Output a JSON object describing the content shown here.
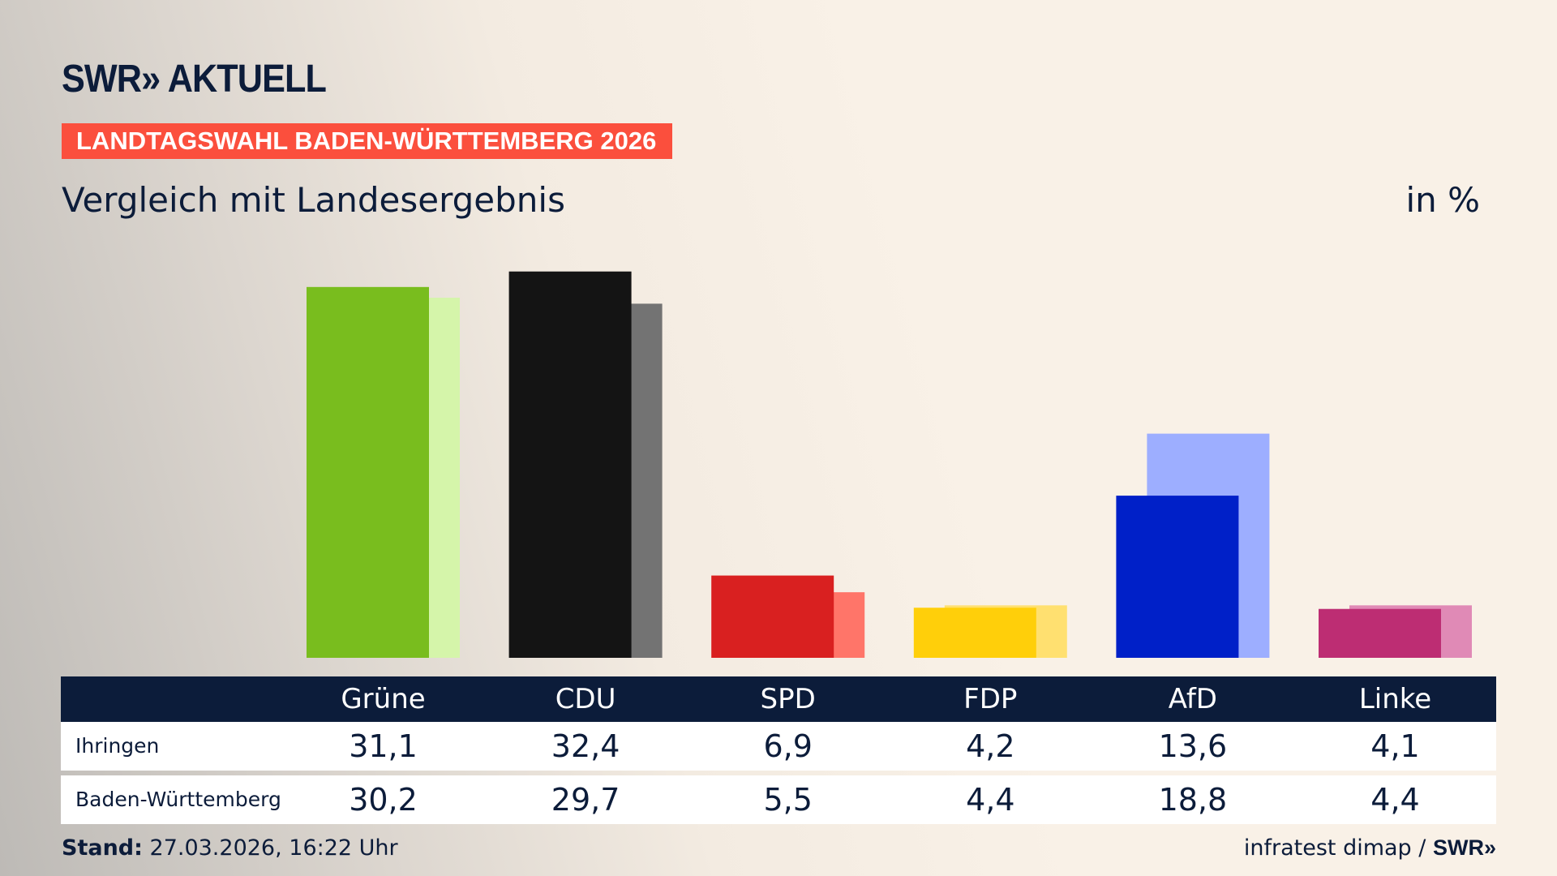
{
  "header": {
    "logo": "SWR» AKTUELL",
    "banner": "LANDTAGSWAHL BADEN-WÜRTTEMBERG 2026",
    "subtitle": "Vergleich mit Landesergebnis",
    "unit": "in %"
  },
  "chart_data": {
    "type": "bar",
    "categories": [
      "Grüne",
      "CDU",
      "SPD",
      "FDP",
      "AfD",
      "Linke"
    ],
    "series": [
      {
        "name": "Ihringen",
        "values": [
          31.1,
          32.4,
          6.9,
          4.2,
          13.6,
          4.1
        ]
      },
      {
        "name": "Baden-Württemberg",
        "values": [
          30.2,
          29.7,
          5.5,
          4.4,
          18.8,
          4.4
        ]
      }
    ],
    "colors": {
      "main": [
        "#79bd1e",
        "#141414",
        "#d92020",
        "#ffcf0a",
        "#0020c8",
        "#bd2d73"
      ],
      "light": [
        "#d5f5aa",
        "#737373",
        "#ff7569",
        "#ffe070",
        "#9daeff",
        "#e08ab6"
      ]
    },
    "value_labels": {
      "Ihringen": [
        "31,1",
        "32,4",
        "6,9",
        "4,2",
        "13,6",
        "4,1"
      ],
      "Baden-Württemberg": [
        "30,2",
        "29,7",
        "5,5",
        "4,4",
        "18,8",
        "4,4"
      ]
    },
    "ylim": [
      0,
      33
    ]
  },
  "footer": {
    "stand_label": "Stand:",
    "stand_value": "27.03.2026, 16:22 Uhr",
    "source": "infratest dimap /",
    "source_logo": "SWR»"
  }
}
